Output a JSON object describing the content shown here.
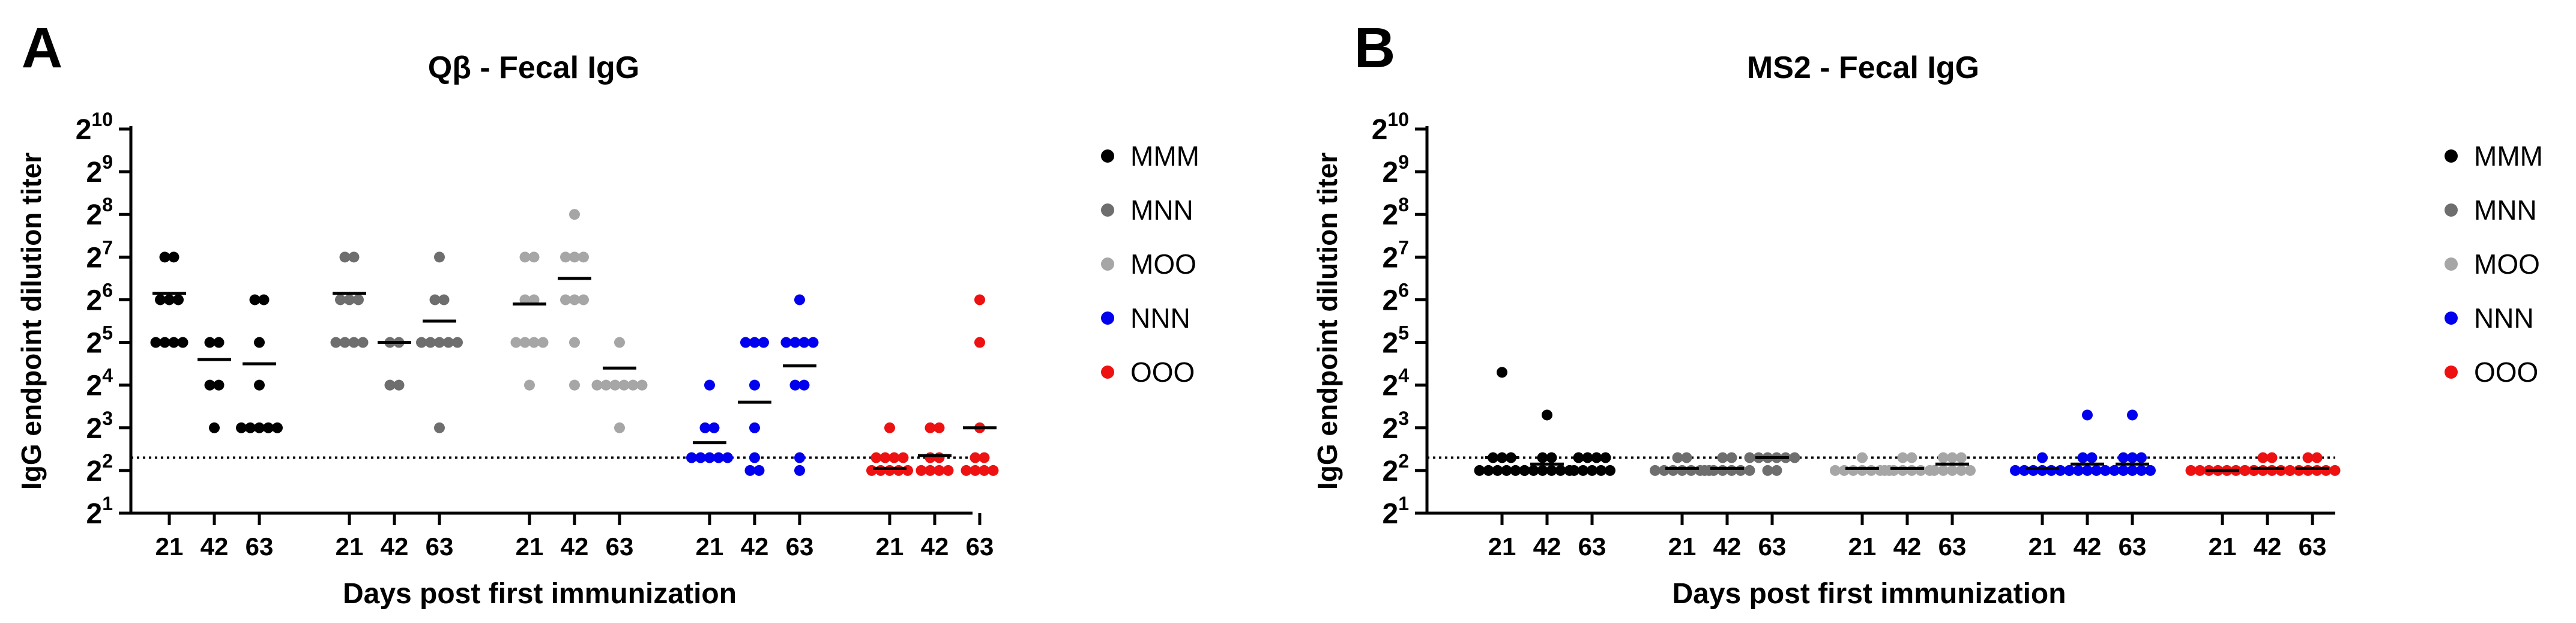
{
  "chart_data": [
    {
      "type": "scatter",
      "panel_label": "A",
      "title": "Qβ - Fecal IgG",
      "xlabel": "Days post first immunization",
      "ylabel": "IgG endpoint dilution titer",
      "y_scale": "log2",
      "ylim_exponent": [
        1,
        10
      ],
      "ytick_base": "2",
      "ytick_exponents": [
        "1",
        "2",
        "3",
        "4",
        "5",
        "6",
        "7",
        "8",
        "9",
        "10"
      ],
      "limit_of_detection_exponent": 2.3,
      "groups": [
        "MMM",
        "MNN",
        "MOO",
        "NNN",
        "OOO"
      ],
      "days": [
        "21",
        "42",
        "63"
      ],
      "series": [
        {
          "name": "MMM",
          "color": "#000000",
          "points": [
            {
              "day": "21",
              "exponents": [
                7,
                7,
                6,
                6,
                6,
                5,
                5,
                5,
                5
              ],
              "mean_exponent": 6.15
            },
            {
              "day": "42",
              "exponents": [
                5,
                5,
                4,
                4,
                3
              ],
              "mean_exponent": 4.6
            },
            {
              "day": "63",
              "exponents": [
                6,
                6,
                5,
                4,
                3,
                3,
                3,
                3,
                3
              ],
              "mean_exponent": 4.5
            }
          ]
        },
        {
          "name": "MNN",
          "color": "#6e6e6e",
          "points": [
            {
              "day": "21",
              "exponents": [
                7,
                7,
                6,
                6,
                6,
                5,
                5,
                5,
                5
              ],
              "mean_exponent": 6.15
            },
            {
              "day": "42",
              "exponents": [
                5,
                5,
                4,
                4
              ],
              "mean_exponent": 5.0
            },
            {
              "day": "63",
              "exponents": [
                7,
                6,
                6,
                5,
                5,
                5,
                5,
                5,
                3
              ],
              "mean_exponent": 5.5
            }
          ]
        },
        {
          "name": "MOO",
          "color": "#a6a6a6",
          "points": [
            {
              "day": "21",
              "exponents": [
                7,
                7,
                6,
                6,
                5,
                5,
                5,
                5,
                4
              ],
              "mean_exponent": 5.9
            },
            {
              "day": "42",
              "exponents": [
                8,
                7,
                7,
                7,
                6,
                6,
                6,
                5,
                4
              ],
              "mean_exponent": 6.5
            },
            {
              "day": "63",
              "exponents": [
                5,
                4,
                4,
                4,
                4,
                4,
                4,
                3
              ],
              "mean_exponent": 4.4
            }
          ]
        },
        {
          "name": "NNN",
          "color": "#0000ee",
          "points": [
            {
              "day": "21",
              "exponents": [
                4,
                3,
                3,
                2.3,
                2.3,
                2.3,
                2.3,
                2.3
              ],
              "mean_exponent": 2.65
            },
            {
              "day": "42",
              "exponents": [
                5,
                5,
                5,
                4,
                3,
                2.3,
                2,
                2
              ],
              "mean_exponent": 3.6
            },
            {
              "day": "63",
              "exponents": [
                6,
                5,
                5,
                5,
                5,
                4,
                4,
                2.3,
                2
              ],
              "mean_exponent": 4.45
            }
          ]
        },
        {
          "name": "OOO",
          "color": "#ee1111",
          "points": [
            {
              "day": "21",
              "exponents": [
                2.3,
                2.3,
                2.3,
                2,
                2,
                2,
                2,
                2,
                2.3,
                3
              ],
              "mean_exponent": 2.05
            },
            {
              "day": "42",
              "exponents": [
                2.3,
                3,
                3,
                2.3,
                2,
                2,
                2,
                2
              ],
              "mean_exponent": 2.35
            },
            {
              "day": "63",
              "exponents": [
                6,
                5,
                3,
                2.3,
                2.3,
                2,
                2,
                2,
                2
              ],
              "mean_exponent": 3.0
            }
          ]
        }
      ]
    },
    {
      "type": "scatter",
      "panel_label": "B",
      "title": "MS2 - Fecal IgG",
      "xlabel": "Days post first immunization",
      "ylabel": "IgG endpoint dilution titer",
      "y_scale": "log2",
      "ylim_exponent": [
        1,
        10
      ],
      "ytick_base": "2",
      "ytick_exponents": [
        "1",
        "2",
        "3",
        "4",
        "5",
        "6",
        "7",
        "8",
        "9",
        "10"
      ],
      "limit_of_detection_exponent": 2.3,
      "groups": [
        "MMM",
        "MNN",
        "MOO",
        "NNN",
        "OOO"
      ],
      "days": [
        "21",
        "42",
        "63"
      ],
      "series": [
        {
          "name": "MMM",
          "color": "#000000",
          "points": [
            {
              "day": "21",
              "exponents": [
                4.3,
                2.3,
                2.3,
                2.3,
                2,
                2,
                2,
                2,
                2,
                2
              ],
              "mean_exponent": 2.3
            },
            {
              "day": "42",
              "exponents": [
                3.3,
                2.3,
                2.3,
                2,
                2,
                2,
                2,
                2,
                2
              ],
              "mean_exponent": 2.15
            },
            {
              "day": "63",
              "exponents": [
                2.3,
                2.3,
                2.3,
                2.3,
                2,
                2,
                2,
                2,
                2
              ],
              "mean_exponent": 2.3
            }
          ]
        },
        {
          "name": "MNN",
          "color": "#6e6e6e",
          "points": [
            {
              "day": "21",
              "exponents": [
                2.3,
                2.3,
                2,
                2,
                2,
                2,
                2,
                2,
                2
              ],
              "mean_exponent": 2.05
            },
            {
              "day": "42",
              "exponents": [
                2.3,
                2.3,
                2,
                2,
                2,
                2,
                2,
                2
              ],
              "mean_exponent": 2.05
            },
            {
              "day": "63",
              "exponents": [
                2.3,
                2.3,
                2.3,
                2.3,
                2.3,
                2.3,
                2,
                2
              ],
              "mean_exponent": 2.3
            }
          ]
        },
        {
          "name": "MOO",
          "color": "#a6a6a6",
          "points": [
            {
              "day": "21",
              "exponents": [
                2.3,
                2,
                2,
                2,
                2,
                2,
                2,
                2
              ],
              "mean_exponent": 2.05
            },
            {
              "day": "42",
              "exponents": [
                2.3,
                2.3,
                2,
                2,
                2,
                2,
                2,
                2
              ],
              "mean_exponent": 2.05
            },
            {
              "day": "63",
              "exponents": [
                2.3,
                2.3,
                2.3,
                2,
                2,
                2,
                2,
                2
              ],
              "mean_exponent": 2.15
            }
          ]
        },
        {
          "name": "NNN",
          "color": "#0000ee",
          "points": [
            {
              "day": "21",
              "exponents": [
                2.3,
                2,
                2,
                2,
                2,
                2,
                2,
                2
              ],
              "mean_exponent": 2.05
            },
            {
              "day": "42",
              "exponents": [
                3.3,
                2.3,
                2.3,
                2,
                2,
                2,
                2,
                2
              ],
              "mean_exponent": 2.15
            },
            {
              "day": "63",
              "exponents": [
                3.3,
                2.3,
                2.3,
                2.3,
                2,
                2,
                2,
                2,
                2
              ],
              "mean_exponent": 2.15
            }
          ]
        },
        {
          "name": "OOO",
          "color": "#ee1111",
          "points": [
            {
              "day": "21",
              "exponents": [
                2,
                2,
                2,
                2,
                2,
                2,
                2,
                2
              ],
              "mean_exponent": 2.0
            },
            {
              "day": "42",
              "exponents": [
                2.3,
                2.3,
                2,
                2,
                2,
                2,
                2,
                2
              ],
              "mean_exponent": 2.05
            },
            {
              "day": "63",
              "exponents": [
                2.3,
                2.3,
                2,
                2,
                2,
                2,
                2,
                2
              ],
              "mean_exponent": 2.05
            }
          ]
        }
      ]
    }
  ]
}
